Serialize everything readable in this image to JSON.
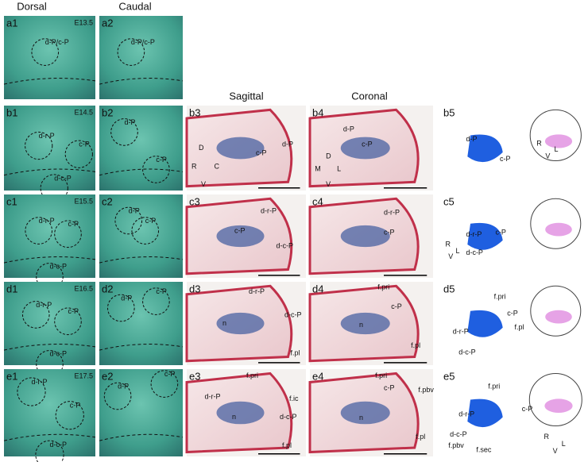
{
  "headers": [
    "Dorsal",
    "Caudal",
    "Sagittal",
    "Coronal"
  ],
  "panels": [
    {
      "id": "a1",
      "stage": "E13.5",
      "labels": [
        "d-P/c-P"
      ]
    },
    {
      "id": "a2",
      "labels": [
        "d-P/c-P"
      ]
    },
    {
      "id": "b1",
      "stage": "E14.5",
      "labels": [
        "d-r-P",
        "c-P",
        "d-c-P"
      ]
    },
    {
      "id": "b2",
      "labels": [
        "d-P",
        "c-P"
      ]
    },
    {
      "id": "b3",
      "labels": [
        "d-P",
        "c-P",
        "D",
        "R",
        "C",
        "V"
      ]
    },
    {
      "id": "b4",
      "labels": [
        "d-P",
        "c-P",
        "D",
        "M",
        "L",
        "V"
      ]
    },
    {
      "id": "b5",
      "labels": [
        "d-P",
        "c-P",
        "R",
        "L",
        "V"
      ]
    },
    {
      "id": "c1",
      "stage": "E15.5",
      "labels": [
        "d-r-P",
        "c-P",
        "d-c-P"
      ]
    },
    {
      "id": "c2",
      "labels": [
        "d-P",
        "c-P"
      ]
    },
    {
      "id": "c3",
      "labels": [
        "d-r-P",
        "c-P",
        "d-c-P"
      ]
    },
    {
      "id": "c4",
      "labels": [
        "d-r-P",
        "c-P"
      ]
    },
    {
      "id": "c5",
      "labels": [
        "d-r-P",
        "c-P",
        "d-c-P",
        "R",
        "L",
        "V"
      ]
    },
    {
      "id": "d1",
      "stage": "E16.5",
      "labels": [
        "d-r-P",
        "c-P",
        "d-c-P"
      ]
    },
    {
      "id": "d2",
      "labels": [
        "d-P",
        "c-P"
      ]
    },
    {
      "id": "d3",
      "labels": [
        "d-r-P",
        "n",
        "d-c-P",
        "f.pl"
      ]
    },
    {
      "id": "d4",
      "labels": [
        "f.pri",
        "c-P",
        "n",
        "f.pl"
      ]
    },
    {
      "id": "d5",
      "labels": [
        "f.pri",
        "c-P",
        "d-r-P",
        "f.pl",
        "d-c-P"
      ]
    },
    {
      "id": "e1",
      "stage": "E17.5",
      "labels": [
        "d-r-P",
        "c-P",
        "d-c-P"
      ]
    },
    {
      "id": "e2",
      "labels": [
        "d-P",
        "c-P"
      ]
    },
    {
      "id": "e3",
      "labels": [
        "f.pri",
        "d-r-P",
        "n",
        "f.ic",
        "d-c-P",
        "f.pl"
      ]
    },
    {
      "id": "e4",
      "labels": [
        "f.pri",
        "c-P",
        "f.pbv",
        "n",
        "f.pl"
      ]
    },
    {
      "id": "e5",
      "labels": [
        "f.pri",
        "d-r-P",
        "c-P",
        "d-c-P",
        "f.pbv",
        "f.sec",
        "R",
        "L",
        "V"
      ]
    }
  ]
}
